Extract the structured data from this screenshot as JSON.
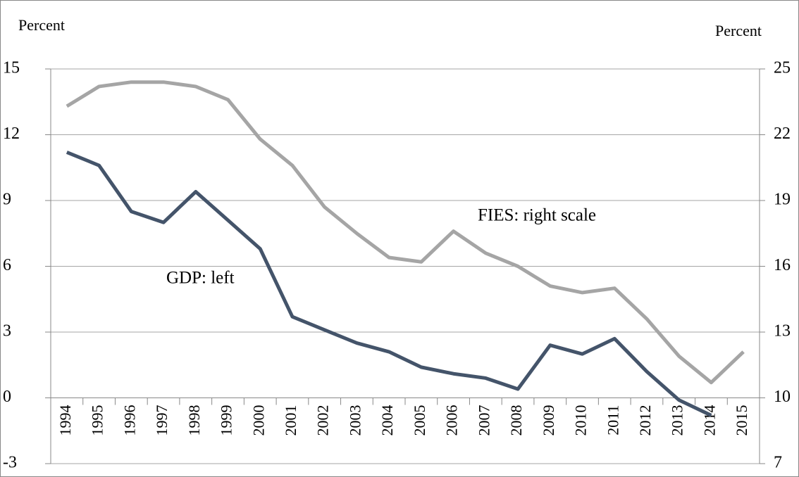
{
  "chart_data": {
    "type": "line",
    "y_label": "Percent",
    "y2_label": "Percent",
    "categories": [
      "1994",
      "1995",
      "1996",
      "1997",
      "1998",
      "1999",
      "2000",
      "2001",
      "2002",
      "2003",
      "2004",
      "2005",
      "2006",
      "2007",
      "2008",
      "2009",
      "2010",
      "2011",
      "2012",
      "2013",
      "2014",
      "2015"
    ],
    "series": [
      {
        "name": "GDP",
        "color": "#44546a",
        "values": [
          11.2,
          10.6,
          8.5,
          8.0,
          9.4,
          8.1,
          6.8,
          3.7,
          3.1,
          2.5,
          2.1,
          1.4,
          1.1,
          0.9,
          0.4,
          2.4,
          2.0,
          2.7,
          1.2,
          -0.1,
          -0.8,
          null
        ]
      },
      {
        "name": "FIES",
        "color": "#a5a5a5",
        "axis": "y2",
        "values": [
          23.3,
          24.2,
          24.4,
          24.4,
          24.2,
          23.6,
          21.8,
          20.6,
          18.7,
          17.5,
          16.4,
          16.2,
          17.6,
          16.6,
          16.0,
          15.1,
          14.8,
          15.0,
          13.6,
          11.9,
          10.7,
          12.1
        ]
      }
    ],
    "annotations": [
      "FIES: right scale",
      "GDP: left"
    ],
    "ylim": [
      -3,
      15
    ],
    "yticks": [
      -3,
      0,
      3,
      6,
      9,
      12,
      15
    ],
    "y2lim": [
      7,
      25
    ],
    "y2ticks": [
      7,
      10,
      13,
      16,
      19,
      22,
      25
    ],
    "grid": true
  }
}
